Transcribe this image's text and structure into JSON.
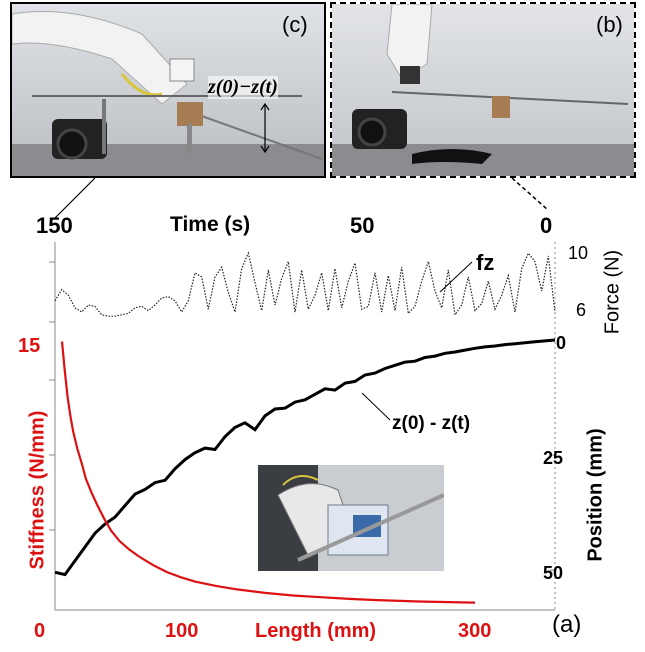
{
  "panels": {
    "c_label": "(c)",
    "b_label": "(b)",
    "a_label": "(a)",
    "c_annotation": "z(0)−z(t)"
  },
  "colors": {
    "stiffness": "#d11",
    "position": "#000",
    "force": "#222"
  },
  "chart_data": {
    "type": "line",
    "top_axis": {
      "label": "Time (s)",
      "ticks": [
        "150",
        "50",
        "0"
      ],
      "tick_values": [
        150,
        50,
        0
      ],
      "range": [
        150,
        0
      ]
    },
    "bottom_axis": {
      "label": "Length (mm)",
      "ticks": [
        "0",
        "100",
        "300"
      ],
      "tick_values": [
        0,
        100,
        300
      ],
      "range": [
        0,
        300
      ]
    },
    "left_axis": {
      "label": "Stiffness (N/mm)",
      "ticks": [
        "15"
      ],
      "range": [
        0,
        15.5
      ]
    },
    "right_axis_position": {
      "label": "Position (mm)",
      "ticks": [
        "0",
        "25",
        "50"
      ],
      "range": [
        0,
        55
      ],
      "inverted": true
    },
    "right_axis_force": {
      "label": "Force (N)",
      "ticks": [
        "10",
        "6"
      ],
      "range": [
        5.2,
        10.8
      ]
    },
    "series": [
      {
        "name": "fz",
        "axis": "force",
        "style": "dotted",
        "time": [
          150,
          148,
          146,
          144,
          142,
          140,
          138,
          136,
          134,
          132,
          130,
          128,
          126,
          124,
          122,
          120,
          118,
          116,
          114,
          112,
          110,
          108,
          106,
          104,
          102,
          100,
          98,
          96,
          94,
          92,
          90,
          88,
          86,
          84,
          82,
          80,
          78,
          76,
          74,
          72,
          70,
          68,
          66,
          64,
          62,
          60,
          58,
          56,
          54,
          52,
          50,
          48,
          46,
          44,
          42,
          40,
          38,
          36,
          34,
          32,
          30,
          28,
          26,
          24,
          22,
          20,
          18,
          16,
          14,
          12,
          10,
          8,
          6,
          4,
          2,
          0
        ],
        "values": [
          6.8,
          7.6,
          7.2,
          6.3,
          6.0,
          6.5,
          6.4,
          5.8,
          5.7,
          5.7,
          5.8,
          5.9,
          6.3,
          6.4,
          6.1,
          6.5,
          7.0,
          7.1,
          6.8,
          6.0,
          6.8,
          8.8,
          8.5,
          6.2,
          8.5,
          9.2,
          7.4,
          6.0,
          9.1,
          10.2,
          8.1,
          6.1,
          9.0,
          6.5,
          8.4,
          9.6,
          6.0,
          9.0,
          6.2,
          7.2,
          8.8,
          6.1,
          9.1,
          6.3,
          8.2,
          9.5,
          6.2,
          6.4,
          8.8,
          6.0,
          8.6,
          6.1,
          9.2,
          5.9,
          6.4,
          8.2,
          9.6,
          7.5,
          6.3,
          9.0,
          5.8,
          6.5,
          8.5,
          6.1,
          6.6,
          8.2,
          6.2,
          7.2,
          8.6,
          6.0,
          9.1,
          10.2,
          9.6,
          7.5,
          10.0,
          6.0
        ]
      },
      {
        "name": "z(0) - z(t)",
        "axis": "position",
        "style": "solid",
        "time": [
          150,
          147,
          144,
          141,
          138,
          135,
          132,
          129,
          126,
          123,
          120,
          117,
          114,
          111,
          108,
          105,
          102,
          99,
          96,
          93,
          90,
          87,
          84,
          81,
          78,
          75,
          72,
          69,
          66,
          63,
          60,
          57,
          54,
          51,
          48,
          45,
          42,
          39,
          36,
          33,
          30,
          27,
          24,
          21,
          18,
          15,
          12,
          9,
          6,
          3,
          0
        ],
        "values": [
          50.5,
          51,
          48,
          45,
          42,
          40,
          38.5,
          36,
          33.5,
          32.5,
          31,
          30.5,
          28,
          26,
          24.5,
          23.5,
          23.8,
          21,
          19,
          18,
          19.5,
          16.5,
          15,
          14.8,
          13.5,
          13,
          11.8,
          10.6,
          10.9,
          9.4,
          9,
          7.6,
          7.2,
          6.2,
          5.5,
          4.8,
          4.6,
          3.8,
          3.5,
          2.9,
          2.6,
          2.2,
          1.8,
          1.5,
          1.3,
          1,
          0.8,
          0.6,
          0.4,
          0.2,
          0
        ]
      },
      {
        "name": "Stiffness",
        "axis": "stiffness",
        "style": "solid",
        "x": [
          5,
          7,
          9,
          11,
          13,
          16,
          19,
          22,
          26,
          30,
          35,
          40,
          46,
          53,
          60,
          70,
          80,
          90,
          100,
          115,
          130,
          150,
          170,
          190,
          210,
          230,
          260,
          290,
          300
        ],
        "values": [
          15.2,
          13.5,
          12.0,
          10.9,
          10.0,
          9.0,
          8.2,
          7.3,
          6.5,
          5.8,
          5.0,
          4.3,
          3.7,
          3.2,
          2.8,
          2.3,
          1.9,
          1.6,
          1.35,
          1.1,
          0.9,
          0.7,
          0.55,
          0.45,
          0.35,
          0.28,
          0.2,
          0.15,
          0.14
        ]
      }
    ]
  }
}
